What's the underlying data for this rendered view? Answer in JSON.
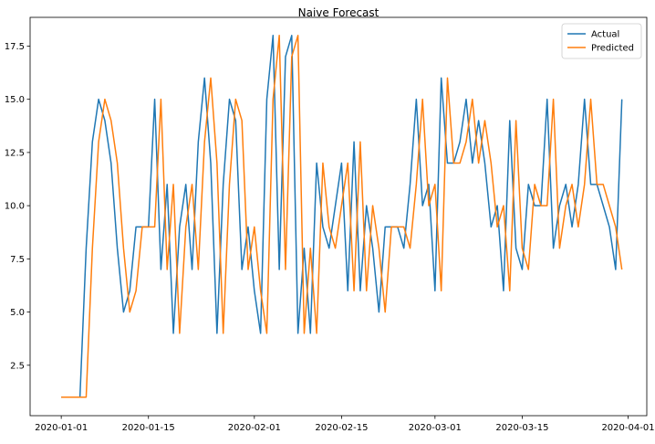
{
  "chart_data": {
    "type": "line",
    "title": "Naive Forecast",
    "xlabel": "",
    "ylabel": "",
    "x_type": "date",
    "xlim": [
      "2019-12-27",
      "2020-04-04"
    ],
    "ylim": [
      0.13,
      18.85
    ],
    "x_ticks": [
      "2020-01-01",
      "2020-01-15",
      "2020-02-01",
      "2020-02-15",
      "2020-03-01",
      "2020-03-15",
      "2020-04-01"
    ],
    "y_ticks": [
      2.5,
      5.0,
      7.5,
      10.0,
      12.5,
      15.0,
      17.5
    ],
    "y_tick_labels": [
      "2.5",
      "5.0",
      "7.5",
      "10.0",
      "12.5",
      "15.0",
      "17.5"
    ],
    "grid": false,
    "legend_position": "top-right",
    "start_date": "2020-01-01",
    "series": [
      {
        "name": "Actual",
        "color": "#1f77b4",
        "values": [
          1,
          1,
          1,
          1,
          8,
          13,
          15,
          14,
          12,
          8,
          5,
          6,
          9,
          9,
          9,
          15,
          7,
          11,
          4,
          9,
          11,
          7,
          13,
          16,
          12,
          4,
          11,
          15,
          14,
          7,
          9,
          6,
          4,
          15,
          18,
          7,
          17,
          18,
          4,
          8,
          4,
          12,
          9,
          8,
          10,
          12,
          6,
          13,
          6,
          10,
          8,
          5,
          9,
          9,
          9,
          8,
          11,
          15,
          10,
          11,
          6,
          16,
          12,
          12,
          13,
          15,
          12,
          14,
          12,
          9,
          10,
          6,
          14,
          8,
          7,
          11,
          10,
          10,
          15,
          8,
          10,
          11,
          9,
          11,
          15,
          11,
          11,
          10,
          9,
          7,
          15
        ]
      },
      {
        "name": "Predicted",
        "color": "#ff7f0e",
        "values": [
          1,
          1,
          1,
          1,
          1,
          8,
          13,
          15,
          14,
          12,
          8,
          5,
          6,
          9,
          9,
          9,
          15,
          7,
          11,
          4,
          9,
          11,
          7,
          13,
          16,
          12,
          4,
          11,
          15,
          14,
          7,
          9,
          6,
          4,
          15,
          18,
          7,
          17,
          18,
          4,
          8,
          4,
          12,
          9,
          8,
          10,
          12,
          6,
          13,
          6,
          10,
          8,
          5,
          9,
          9,
          9,
          8,
          11,
          15,
          10,
          11,
          6,
          16,
          12,
          12,
          13,
          15,
          12,
          14,
          12,
          9,
          10,
          6,
          14,
          8,
          7,
          11,
          10,
          10,
          15,
          8,
          10,
          11,
          9,
          11,
          15,
          11,
          11,
          10,
          9,
          7
        ]
      }
    ]
  }
}
